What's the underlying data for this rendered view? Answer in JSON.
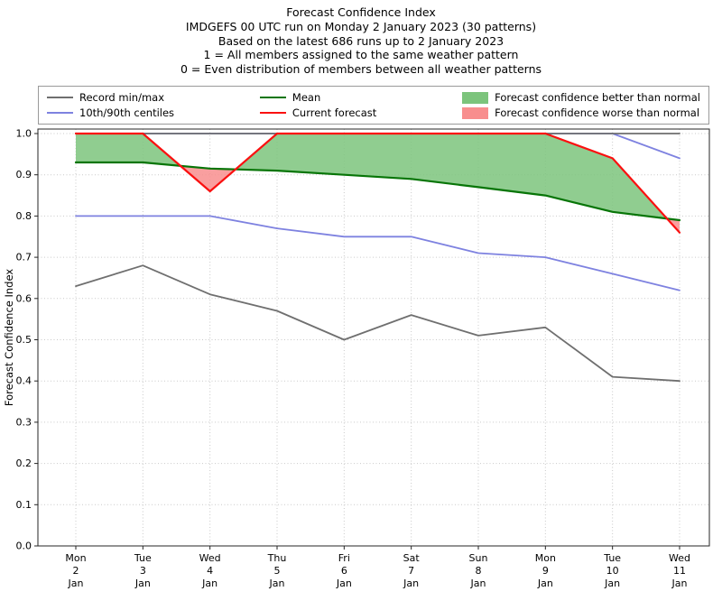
{
  "title": {
    "lines": [
      "Forecast Confidence Index",
      "IMDGEFS 00 UTC run on Monday 2 January 2023 (30 patterns)",
      "Based on the latest 686 runs up to 2 January 2023",
      "1 = All members assigned to the same weather pattern",
      "0 = Even distribution of members between all weather patterns"
    ]
  },
  "legend": {
    "items": [
      {
        "label": "Record min/max",
        "type": "line",
        "color": "#6f6f6f",
        "lw": 2
      },
      {
        "label": "10th/90th centiles",
        "type": "line",
        "color": "#7e82e0",
        "lw": 2
      },
      {
        "label": "Mean",
        "type": "line",
        "color": "#077507",
        "lw": 2
      },
      {
        "label": "Current forecast",
        "type": "line",
        "color": "#fa1010",
        "lw": 2
      },
      {
        "label": "Forecast confidence better than normal",
        "type": "patch",
        "color": "#7cc47c"
      },
      {
        "label": "Forecast confidence worse than normal",
        "type": "patch",
        "color": "#f88e8e"
      }
    ]
  },
  "chart_data": {
    "type": "line",
    "title": "Forecast Confidence Index",
    "ylabel": "Forecast Confidence Index",
    "ylim": [
      0.0,
      1.0
    ],
    "yticks": [
      "0.0",
      "0.1",
      "0.2",
      "0.3",
      "0.4",
      "0.5",
      "0.6",
      "0.7",
      "0.8",
      "0.9",
      "1.0"
    ],
    "grid": true,
    "legend_position": "top",
    "x": [
      {
        "day": "Mon",
        "date": "2",
        "month": "Jan"
      },
      {
        "day": "Tue",
        "date": "3",
        "month": "Jan"
      },
      {
        "day": "Wed",
        "date": "4",
        "month": "Jan"
      },
      {
        "day": "Thu",
        "date": "5",
        "month": "Jan"
      },
      {
        "day": "Fri",
        "date": "6",
        "month": "Jan"
      },
      {
        "day": "Sat",
        "date": "7",
        "month": "Jan"
      },
      {
        "day": "Sun",
        "date": "8",
        "month": "Jan"
      },
      {
        "day": "Mon",
        "date": "9",
        "month": "Jan"
      },
      {
        "day": "Tue",
        "date": "10",
        "month": "Jan"
      },
      {
        "day": "Wed",
        "date": "11",
        "month": "Jan"
      }
    ],
    "series": [
      {
        "id": "centile-90",
        "name": "90th centile",
        "color": "#7e82e0",
        "lw": 1.8,
        "values": [
          1.0,
          1.0,
          1.0,
          1.0,
          1.0,
          1.0,
          1.0,
          1.0,
          1.0,
          0.94
        ]
      },
      {
        "id": "centile-10",
        "name": "10th centile",
        "color": "#7e82e0",
        "lw": 1.8,
        "values": [
          0.8,
          0.8,
          0.8,
          0.77,
          0.75,
          0.75,
          0.71,
          0.7,
          0.66,
          0.62
        ]
      },
      {
        "id": "record-max",
        "name": "Record max",
        "color": "#6f6f6f",
        "lw": 1.8,
        "values": [
          1.0,
          1.0,
          1.0,
          1.0,
          1.0,
          1.0,
          1.0,
          1.0,
          1.0,
          1.0
        ]
      },
      {
        "id": "record-min",
        "name": "Record min",
        "color": "#6f6f6f",
        "lw": 1.8,
        "values": [
          0.63,
          0.68,
          0.61,
          0.57,
          0.5,
          0.56,
          0.51,
          0.53,
          0.41,
          0.4
        ]
      },
      {
        "id": "mean",
        "name": "Mean",
        "color": "#077507",
        "lw": 2.2,
        "values": [
          0.93,
          0.93,
          0.915,
          0.91,
          0.9,
          0.89,
          0.87,
          0.85,
          0.81,
          0.79
        ]
      },
      {
        "id": "current",
        "name": "Current forecast",
        "color": "#fa1010",
        "lw": 2.2,
        "values": [
          1.0,
          1.0,
          0.86,
          1.0,
          1.0,
          1.0,
          1.0,
          1.0,
          0.94,
          0.76
        ]
      }
    ],
    "bands": {
      "mean_series": "mean",
      "current_series": "current",
      "better_label": "Forecast confidence better than normal",
      "worse_label": "Forecast confidence worse than normal",
      "better_color": "#7cc47c",
      "worse_color": "#f88e8e",
      "opacity": 0.85
    }
  }
}
